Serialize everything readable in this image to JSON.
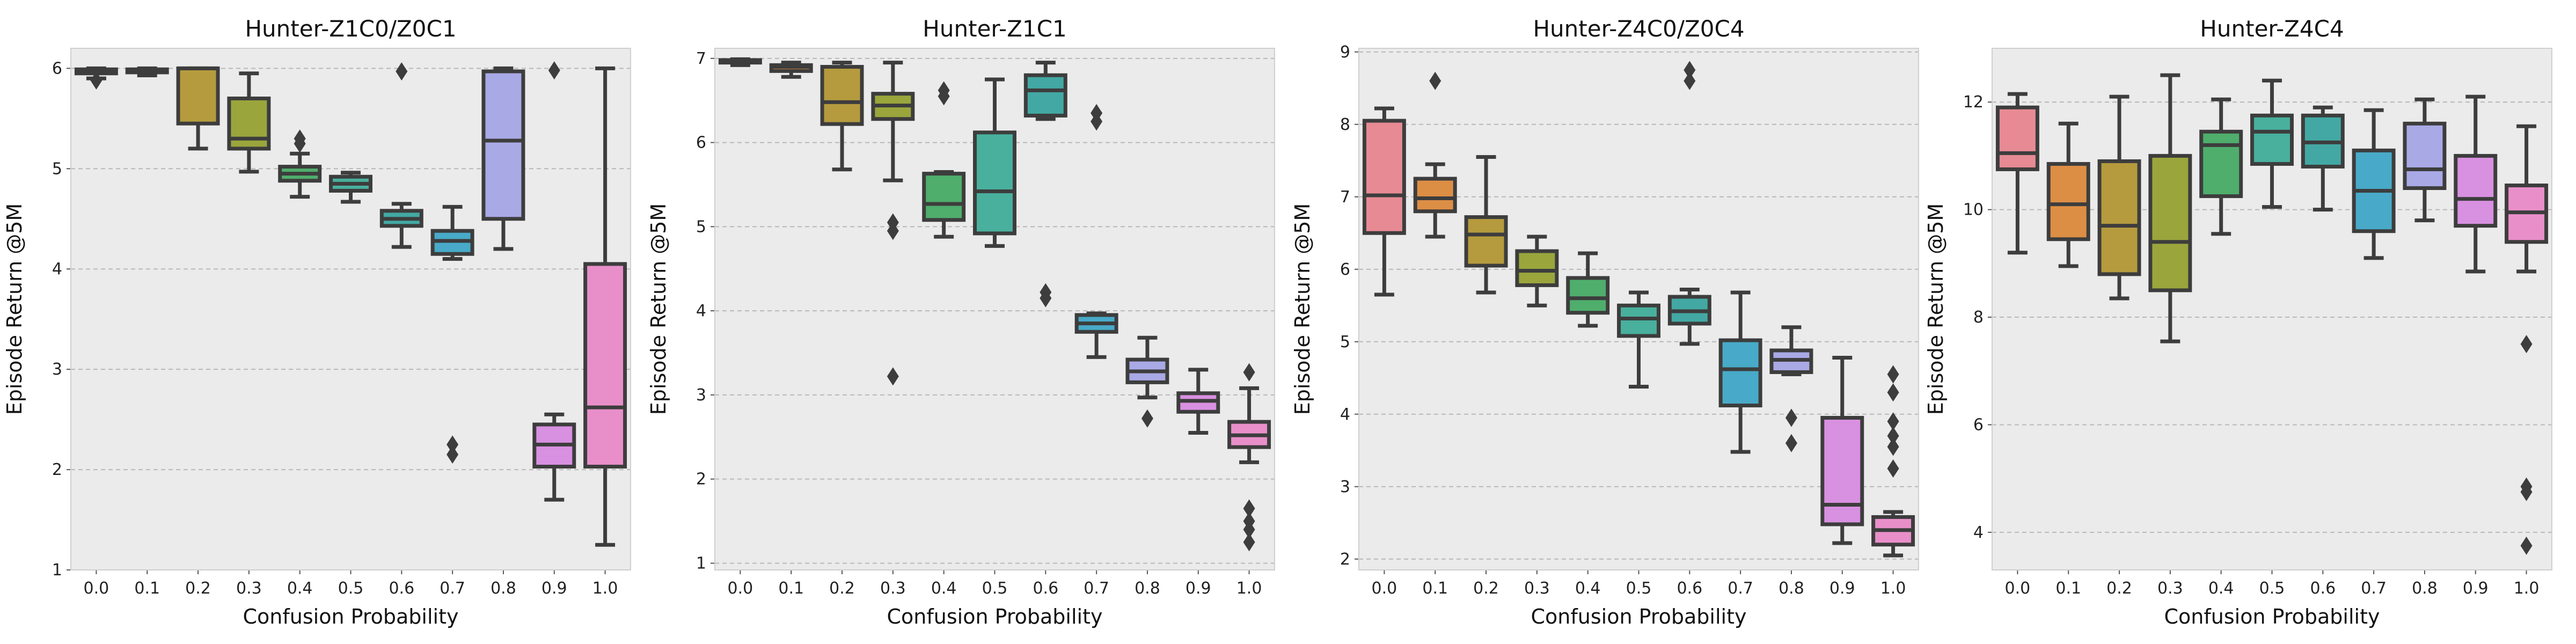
{
  "chart_data": [
    {
      "type": "box",
      "title": "Hunter-Z1C0/Z0C1",
      "xlabel": "Confusion Probability",
      "ylabel": "Episode Return @5M",
      "categories": [
        "0.0",
        "0.1",
        "0.2",
        "0.3",
        "0.4",
        "0.5",
        "0.6",
        "0.7",
        "0.8",
        "0.9",
        "1.0"
      ],
      "ylim": [
        1,
        6.2
      ],
      "yticks": [
        1,
        2,
        3,
        4,
        5,
        6
      ],
      "boxes": [
        {
          "whislo": 5.9,
          "q1": 5.95,
          "med": 5.97,
          "q3": 5.99,
          "whishi": 6.0,
          "fliers": [
            5.88
          ]
        },
        {
          "whislo": 5.93,
          "q1": 5.96,
          "med": 5.98,
          "q3": 5.99,
          "whishi": 6.0,
          "fliers": []
        },
        {
          "whislo": 5.2,
          "q1": 5.45,
          "med": 6.0,
          "q3": 6.0,
          "whishi": 6.0,
          "fliers": []
        },
        {
          "whislo": 4.97,
          "q1": 5.2,
          "med": 5.3,
          "q3": 5.7,
          "whishi": 5.95,
          "fliers": []
        },
        {
          "whislo": 4.72,
          "q1": 4.88,
          "med": 4.95,
          "q3": 5.02,
          "whishi": 5.15,
          "fliers": [
            5.3,
            5.25
          ]
        },
        {
          "whislo": 4.67,
          "q1": 4.78,
          "med": 4.85,
          "q3": 4.92,
          "whishi": 4.96,
          "fliers": []
        },
        {
          "whislo": 4.22,
          "q1": 4.43,
          "med": 4.5,
          "q3": 4.58,
          "whishi": 4.65,
          "fliers": [
            5.97
          ]
        },
        {
          "whislo": 4.1,
          "q1": 4.15,
          "med": 4.28,
          "q3": 4.38,
          "whishi": 4.62,
          "fliers": [
            2.25,
            2.15
          ]
        },
        {
          "whislo": 4.2,
          "q1": 4.5,
          "med": 5.28,
          "q3": 5.97,
          "whishi": 6.0,
          "fliers": []
        },
        {
          "whislo": 1.7,
          "q1": 2.03,
          "med": 2.25,
          "q3": 2.45,
          "whishi": 2.55,
          "fliers": [
            5.98
          ]
        },
        {
          "whislo": 1.25,
          "q1": 2.03,
          "med": 2.62,
          "q3": 4.05,
          "whishi": 6.0,
          "fliers": []
        }
      ]
    },
    {
      "type": "box",
      "title": "Hunter-Z1C1",
      "xlabel": "Confusion Probability",
      "ylabel": "Episode Return @5M",
      "categories": [
        "0.0",
        "0.1",
        "0.2",
        "0.3",
        "0.4",
        "0.5",
        "0.6",
        "0.7",
        "0.8",
        "0.9",
        "1.0"
      ],
      "ylim": [
        0.92,
        7.12
      ],
      "yticks": [
        1,
        2,
        3,
        4,
        5,
        6,
        7
      ],
      "boxes": [
        {
          "whislo": 6.92,
          "q1": 6.95,
          "med": 6.97,
          "q3": 6.98,
          "whishi": 6.99,
          "fliers": []
        },
        {
          "whislo": 6.78,
          "q1": 6.85,
          "med": 6.9,
          "q3": 6.92,
          "whishi": 6.95,
          "fliers": []
        },
        {
          "whislo": 5.68,
          "q1": 6.22,
          "med": 6.48,
          "q3": 6.9,
          "whishi": 6.95,
          "fliers": []
        },
        {
          "whislo": 5.55,
          "q1": 6.28,
          "med": 6.44,
          "q3": 6.58,
          "whishi": 6.95,
          "fliers": [
            5.05,
            4.95,
            3.22
          ]
        },
        {
          "whislo": 4.88,
          "q1": 5.08,
          "med": 5.27,
          "q3": 5.63,
          "whishi": 5.65,
          "fliers": [
            6.62,
            6.55
          ]
        },
        {
          "whislo": 4.77,
          "q1": 4.92,
          "med": 5.42,
          "q3": 6.12,
          "whishi": 6.75,
          "fliers": []
        },
        {
          "whislo": 6.28,
          "q1": 6.32,
          "med": 6.62,
          "q3": 6.8,
          "whishi": 6.95,
          "fliers": [
            4.22,
            4.15
          ]
        },
        {
          "whislo": 3.45,
          "q1": 3.75,
          "med": 3.85,
          "q3": 3.95,
          "whishi": 3.97,
          "fliers": [
            6.35,
            6.25
          ]
        },
        {
          "whislo": 2.97,
          "q1": 3.15,
          "med": 3.28,
          "q3": 3.42,
          "whishi": 3.68,
          "fliers": [
            2.72
          ]
        },
        {
          "whislo": 2.55,
          "q1": 2.8,
          "med": 2.93,
          "q3": 3.02,
          "whishi": 3.3,
          "fliers": []
        },
        {
          "whislo": 2.2,
          "q1": 2.38,
          "med": 2.52,
          "q3": 2.68,
          "whishi": 3.08,
          "fliers": [
            3.27,
            1.65,
            1.5,
            1.4,
            1.25
          ]
        }
      ]
    },
    {
      "type": "box",
      "title": "Hunter-Z4C0/Z0C4",
      "xlabel": "Confusion Probability",
      "ylabel": "Episode Return @5M",
      "categories": [
        "0.0",
        "0.1",
        "0.2",
        "0.3",
        "0.4",
        "0.5",
        "0.6",
        "0.7",
        "0.8",
        "0.9",
        "1.0"
      ],
      "ylim": [
        1.85,
        9.05
      ],
      "yticks": [
        2,
        3,
        4,
        5,
        6,
        7,
        8,
        9
      ],
      "boxes": [
        {
          "whislo": 5.65,
          "q1": 6.5,
          "med": 7.02,
          "q3": 8.05,
          "whishi": 8.22,
          "fliers": []
        },
        {
          "whislo": 6.45,
          "q1": 6.8,
          "med": 6.98,
          "q3": 7.25,
          "whishi": 7.45,
          "fliers": [
            8.6
          ]
        },
        {
          "whislo": 5.68,
          "q1": 6.05,
          "med": 6.48,
          "q3": 6.72,
          "whishi": 7.55,
          "fliers": []
        },
        {
          "whislo": 5.5,
          "q1": 5.78,
          "med": 5.98,
          "q3": 6.25,
          "whishi": 6.45,
          "fliers": []
        },
        {
          "whislo": 5.22,
          "q1": 5.4,
          "med": 5.6,
          "q3": 5.88,
          "whishi": 6.22,
          "fliers": []
        },
        {
          "whislo": 4.38,
          "q1": 5.08,
          "med": 5.32,
          "q3": 5.5,
          "whishi": 5.68,
          "fliers": []
        },
        {
          "whislo": 4.97,
          "q1": 5.25,
          "med": 5.42,
          "q3": 5.62,
          "whishi": 5.72,
          "fliers": [
            8.75,
            8.6
          ]
        },
        {
          "whislo": 3.48,
          "q1": 4.12,
          "med": 4.62,
          "q3": 5.02,
          "whishi": 5.68,
          "fliers": []
        },
        {
          "whislo": 4.55,
          "q1": 4.58,
          "med": 4.75,
          "q3": 4.88,
          "whishi": 5.2,
          "fliers": [
            3.95,
            3.6
          ]
        },
        {
          "whislo": 2.22,
          "q1": 2.48,
          "med": 2.75,
          "q3": 3.95,
          "whishi": 4.78,
          "fliers": []
        },
        {
          "whislo": 2.05,
          "q1": 2.2,
          "med": 2.4,
          "q3": 2.58,
          "whishi": 2.65,
          "fliers": [
            4.55,
            4.3,
            3.9,
            3.7,
            3.55,
            3.25
          ]
        }
      ]
    },
    {
      "type": "box",
      "title": "Hunter-Z4C4",
      "xlabel": "Confusion Probability",
      "ylabel": "Episode Return @5M",
      "categories": [
        "0.0",
        "0.1",
        "0.2",
        "0.3",
        "0.4",
        "0.5",
        "0.6",
        "0.7",
        "0.8",
        "0.9",
        "1.0"
      ],
      "ylim": [
        3.3,
        13.0
      ],
      "yticks": [
        4,
        6,
        8,
        10,
        12
      ],
      "boxes": [
        {
          "whislo": 9.2,
          "q1": 10.75,
          "med": 11.05,
          "q3": 11.9,
          "whishi": 12.15,
          "fliers": []
        },
        {
          "whislo": 8.95,
          "q1": 9.45,
          "med": 10.1,
          "q3": 10.85,
          "whishi": 11.6,
          "fliers": []
        },
        {
          "whislo": 8.35,
          "q1": 8.8,
          "med": 9.7,
          "q3": 10.9,
          "whishi": 12.1,
          "fliers": []
        },
        {
          "whislo": 7.55,
          "q1": 8.5,
          "med": 9.4,
          "q3": 11.0,
          "whishi": 12.5,
          "fliers": []
        },
        {
          "whislo": 9.55,
          "q1": 10.25,
          "med": 11.2,
          "q3": 11.45,
          "whishi": 12.05,
          "fliers": []
        },
        {
          "whislo": 10.05,
          "q1": 10.85,
          "med": 11.45,
          "q3": 11.75,
          "whishi": 12.4,
          "fliers": []
        },
        {
          "whislo": 10.0,
          "q1": 10.8,
          "med": 11.25,
          "q3": 11.75,
          "whishi": 11.9,
          "fliers": []
        },
        {
          "whislo": 9.1,
          "q1": 9.6,
          "med": 10.35,
          "q3": 11.1,
          "whishi": 11.85,
          "fliers": []
        },
        {
          "whislo": 9.8,
          "q1": 10.4,
          "med": 10.75,
          "q3": 11.6,
          "whishi": 12.05,
          "fliers": []
        },
        {
          "whislo": 8.85,
          "q1": 9.7,
          "med": 10.2,
          "q3": 11.0,
          "whishi": 12.1,
          "fliers": []
        },
        {
          "whislo": 8.85,
          "q1": 9.4,
          "med": 9.95,
          "q3": 10.45,
          "whishi": 11.55,
          "fliers": [
            7.5,
            4.85,
            4.75,
            3.75
          ]
        }
      ]
    }
  ],
  "palette": [
    "#e78a94",
    "#dd8e45",
    "#b59b3e",
    "#9aa63c",
    "#4fae6c",
    "#48b09d",
    "#43a8a3",
    "#48aac8",
    "#a9a9e6",
    "#d890e0",
    "#e88fc9"
  ]
}
